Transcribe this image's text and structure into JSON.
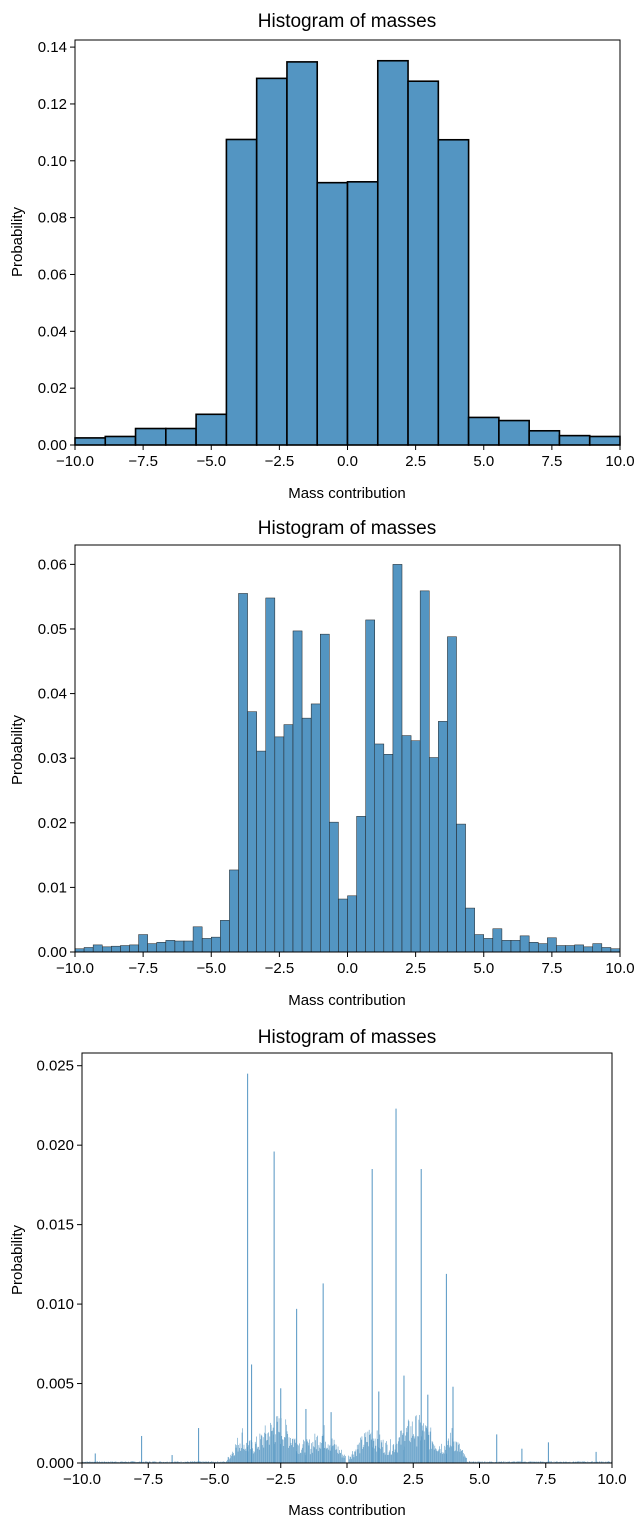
{
  "figure": {
    "background": "#ffffff",
    "bar_color": "#5395c2",
    "edge_color": "#000000"
  },
  "chart_data": [
    {
      "type": "bar",
      "title": "Histogram of masses",
      "xlabel": "Mass contribution",
      "ylabel": "Probability",
      "xlim": [
        -10,
        10
      ],
      "ylim": [
        0,
        0.1425
      ],
      "xticks": [
        -10,
        -7.5,
        -5,
        -2.5,
        0,
        2.5,
        5,
        7.5,
        10
      ],
      "xtick_labels": [
        "−10.0",
        "−7.5",
        "−5.0",
        "−2.5",
        "0.0",
        "2.5",
        "5.0",
        "7.5",
        "10.0"
      ],
      "yticks": [
        0,
        0.02,
        0.04,
        0.06,
        0.08,
        0.1,
        0.12,
        0.14
      ],
      "ytick_labels": [
        "0.00",
        "0.02",
        "0.04",
        "0.06",
        "0.08",
        "0.10",
        "0.12",
        "0.14"
      ],
      "grid": false,
      "bin_edges": [
        -10,
        -8.889,
        -7.778,
        -6.667,
        -5.556,
        -4.444,
        -3.333,
        -2.222,
        -1.111,
        0,
        1.111,
        2.222,
        3.333,
        4.444,
        5.556,
        6.667,
        7.778,
        8.889,
        10
      ],
      "values": [
        0.0025,
        0.003,
        0.0058,
        0.0058,
        0.0108,
        0.1075,
        0.129,
        0.1348,
        0.0923,
        0.0926,
        0.1352,
        0.128,
        0.1074,
        0.0097,
        0.0086,
        0.005,
        0.0033,
        0.003
      ]
    },
    {
      "type": "bar",
      "title": "Histogram of masses",
      "xlabel": "Mass contribution",
      "ylabel": "Probability",
      "xlim": [
        -10,
        10
      ],
      "ylim": [
        0,
        0.063
      ],
      "xticks": [
        -10,
        -7.5,
        -5,
        -2.5,
        0,
        2.5,
        5,
        7.5,
        10
      ],
      "xtick_labels": [
        "−10.0",
        "−7.5",
        "−5.0",
        "−2.5",
        "0.0",
        "2.5",
        "5.0",
        "7.5",
        "10.0"
      ],
      "yticks": [
        0,
        0.01,
        0.02,
        0.03,
        0.04,
        0.05,
        0.06
      ],
      "ytick_labels": [
        "0.00",
        "0.01",
        "0.02",
        "0.03",
        "0.04",
        "0.05",
        "0.06"
      ],
      "grid": false,
      "bin_range": [
        -10,
        10
      ],
      "values": [
        0.0005,
        0.0007,
        0.0011,
        0.0008,
        0.0009,
        0.001,
        0.0011,
        0.0027,
        0.0013,
        0.0015,
        0.0018,
        0.0017,
        0.0017,
        0.0039,
        0.0021,
        0.0023,
        0.0049,
        0.0127,
        0.0555,
        0.0372,
        0.0311,
        0.0548,
        0.0333,
        0.0352,
        0.0497,
        0.0362,
        0.0384,
        0.0492,
        0.0201,
        0.0082,
        0.0087,
        0.021,
        0.0514,
        0.0322,
        0.0306,
        0.06,
        0.0335,
        0.0327,
        0.0559,
        0.0301,
        0.0357,
        0.0488,
        0.0198,
        0.0068,
        0.0027,
        0.0021,
        0.0036,
        0.0018,
        0.0018,
        0.0025,
        0.0015,
        0.0013,
        0.0022,
        0.001,
        0.001,
        0.0011,
        0.0008,
        0.0013,
        0.0007,
        0.0005
      ]
    },
    {
      "type": "bar",
      "title": "Histogram of masses",
      "xlabel": "Mass contribution",
      "ylabel": "Probability",
      "xlim": [
        -10,
        10
      ],
      "ylim": [
        0,
        0.0258
      ],
      "xticks": [
        -10,
        -7.5,
        -5,
        -2.5,
        0,
        2.5,
        5,
        7.5,
        10
      ],
      "xtick_labels": [
        "−10.0",
        "−7.5",
        "−5.0",
        "−2.5",
        "0.0",
        "2.5",
        "5.0",
        "7.5",
        "10.0"
      ],
      "yticks": [
        0,
        0.005,
        0.01,
        0.015,
        0.02,
        0.025
      ],
      "ytick_labels": [
        "0.000",
        "0.005",
        "0.010",
        "0.015",
        "0.020",
        "0.025"
      ],
      "grid": false,
      "bin_width": 0.025,
      "spikes": [
        {
          "x": -3.75,
          "y": 0.0245
        },
        {
          "x": -2.75,
          "y": 0.0196
        },
        {
          "x": -1.9,
          "y": 0.0097
        },
        {
          "x": -0.9,
          "y": 0.0113
        },
        {
          "x": 0.95,
          "y": 0.0185
        },
        {
          "x": 1.85,
          "y": 0.0223
        },
        {
          "x": 2.8,
          "y": 0.0185
        },
        {
          "x": 3.75,
          "y": 0.0119
        },
        {
          "x": -3.6,
          "y": 0.0062
        },
        {
          "x": -2.5,
          "y": 0.0047
        },
        {
          "x": -1.55,
          "y": 0.0034
        },
        {
          "x": -0.6,
          "y": 0.0032
        },
        {
          "x": 1.2,
          "y": 0.0045
        },
        {
          "x": 2.15,
          "y": 0.0055
        },
        {
          "x": 3.05,
          "y": 0.0043
        },
        {
          "x": 4.0,
          "y": 0.0048
        },
        {
          "x": -7.75,
          "y": 0.0017
        },
        {
          "x": -5.6,
          "y": 0.0022
        },
        {
          "x": 5.65,
          "y": 0.0018
        },
        {
          "x": 7.6,
          "y": 0.0013
        },
        {
          "x": -9.5,
          "y": 0.0006
        },
        {
          "x": 9.4,
          "y": 0.0007
        },
        {
          "x": 6.6,
          "y": 0.0009
        },
        {
          "x": -6.6,
          "y": 0.0005
        }
      ]
    }
  ]
}
